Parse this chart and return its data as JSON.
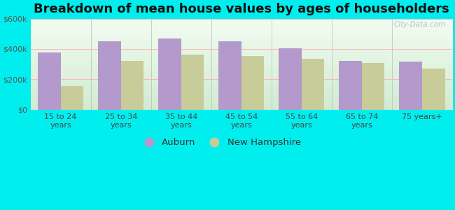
{
  "title": "Breakdown of mean house values by ages of householders",
  "categories": [
    "15 to 24\nyears",
    "25 to 34\nyears",
    "35 to 44\nyears",
    "45 to 54\nyears",
    "55 to 64\nyears",
    "65 to 74\nyears",
    "75 years+"
  ],
  "auburn_values": [
    375000,
    450000,
    470000,
    450000,
    405000,
    320000,
    315000
  ],
  "nh_values": [
    155000,
    320000,
    365000,
    355000,
    335000,
    310000,
    270000
  ],
  "auburn_color": "#b399cc",
  "nh_color": "#c8cc99",
  "outer_background": "#00eeee",
  "ylim": [
    0,
    600000
  ],
  "yticks": [
    0,
    200000,
    400000,
    600000
  ],
  "ytick_labels": [
    "$0",
    "$200k",
    "$400k",
    "$600k"
  ],
  "legend_labels": [
    "Auburn",
    "New Hampshire"
  ],
  "watermark": "City-Data.com",
  "title_fontsize": 13,
  "tick_fontsize": 8,
  "legend_fontsize": 9.5
}
